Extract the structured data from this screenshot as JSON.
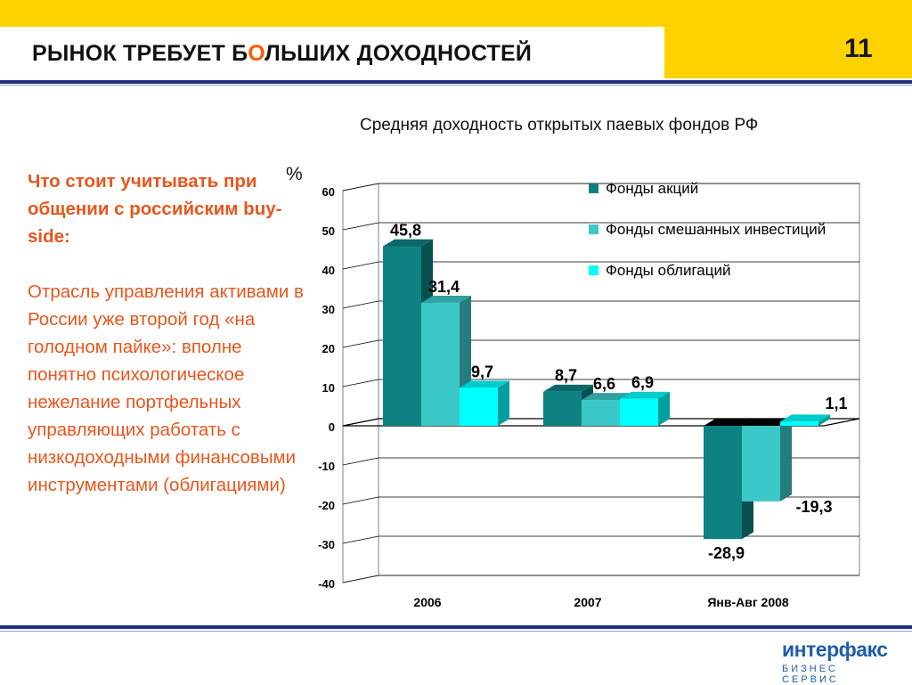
{
  "slide": {
    "title_before": "РЫНОК ТРЕБУЕТ Б",
    "title_highlight": "О",
    "title_after": "ЛЬШИХ ДОХОДНОСТЕЙ",
    "page_number": "11",
    "subtitle": "Средняя доходность открытых паевых фондов РФ",
    "unit": "%"
  },
  "left_text": {
    "question": "Что стоит учитывать при общении с российским buy-side:",
    "body": "Отрасль управления активами в России уже второй год «на голодном пайке»: вполне понятно психологическое нежелание портфельных управляющих работать с низкодоходными финансовыми инструментами (облигациями)"
  },
  "logo": {
    "main": "интерфакс",
    "sub": "БИЗНЕС СЕРВИС"
  },
  "colors": {
    "accent_yellow": "#ffd200",
    "accent_orange": "#e8561c",
    "rule_blue": "#1f2f7a",
    "stocks": "#0e8282",
    "mixed": "#3cc8c8",
    "bonds": "#00ffff"
  },
  "chart_data": {
    "type": "bar",
    "categories": [
      "2006",
      "2007",
      "Янв-Авг 2008"
    ],
    "series": [
      {
        "name": "Фонды акций",
        "values": [
          45.8,
          8.7,
          -28.9
        ],
        "labels": [
          "45,8",
          "8,7",
          "-28,9"
        ],
        "color": "#0e8282"
      },
      {
        "name": "Фонды смешанных инвестиций",
        "values": [
          31.4,
          6.6,
          -19.3
        ],
        "labels": [
          "31,4",
          "6,6",
          "-19,3"
        ],
        "color": "#3cc8c8"
      },
      {
        "name": "Фонды облигаций",
        "values": [
          9.7,
          6.9,
          1.1
        ],
        "labels": [
          "9,7",
          "6,9",
          "1,1"
        ],
        "color": "#00ffff"
      }
    ],
    "ylim": [
      -40,
      60
    ],
    "yticks": [
      "60",
      "50",
      "40",
      "30",
      "20",
      "10",
      "0",
      "-10",
      "-20",
      "-30",
      "-40"
    ],
    "ylabel": "%",
    "grid": true,
    "legend": "top-right"
  }
}
